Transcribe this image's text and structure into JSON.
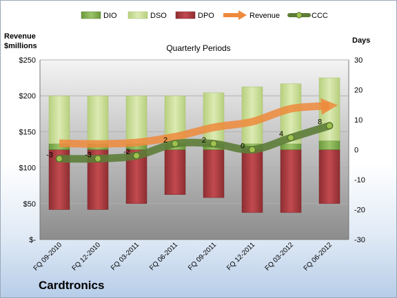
{
  "company": "Cardtronics",
  "y1_title_line1": "Revenue",
  "y1_title_line2": "$millions",
  "y2_title": "Days",
  "plot_title": "Quarterly Periods",
  "colors": {
    "dio": "#6aa84f",
    "dso": "#c9dd97",
    "dpo": "#a83a3e",
    "revenue": "#ee8a3c",
    "ccc": "#5d7d38"
  },
  "chart_data": {
    "type": "bar",
    "title": "Quarterly Periods",
    "categories": [
      "FQ 09-2010",
      "FQ 12-2010",
      "FQ 03-2011",
      "FQ 06-2011",
      "FQ 09-2011",
      "FQ 12-2011",
      "FQ 03-2012",
      "FQ 06-2012"
    ],
    "left_axis": {
      "label": "Revenue $millions",
      "ylim": [
        0,
        250
      ],
      "ticks": [
        "$-",
        "$50",
        "$100",
        "$150",
        "$200",
        "$250"
      ]
    },
    "right_axis": {
      "label": "Days",
      "ylim": [
        -30,
        30
      ],
      "ticks": [
        "-30",
        "-20",
        "-10",
        "0",
        "10",
        "20",
        "30"
      ]
    },
    "legend": [
      "DIO",
      "DSO",
      "DPO",
      "Revenue",
      "CCC"
    ],
    "legend_position": "top",
    "series": [
      {
        "name": "DIO",
        "axis": "right",
        "kind": "stacked-bar",
        "values": [
          2,
          2,
          2,
          2,
          2,
          2,
          2,
          3
        ]
      },
      {
        "name": "DSO",
        "axis": "right",
        "kind": "stacked-bar",
        "values": [
          16,
          16,
          16,
          16,
          17,
          19,
          20,
          21
        ]
      },
      {
        "name": "DPO",
        "axis": "right",
        "kind": "negative-bar",
        "values": [
          -20,
          -20,
          -18,
          -15,
          -16,
          -21,
          -21,
          -18
        ]
      },
      {
        "name": "Revenue",
        "axis": "left",
        "kind": "line-arrow",
        "values": [
          134,
          133,
          135,
          143,
          156,
          164,
          182,
          186
        ]
      },
      {
        "name": "CCC",
        "axis": "right",
        "kind": "line",
        "values": [
          -3,
          -3,
          -2,
          2,
          2,
          0,
          4,
          8
        ]
      }
    ]
  }
}
